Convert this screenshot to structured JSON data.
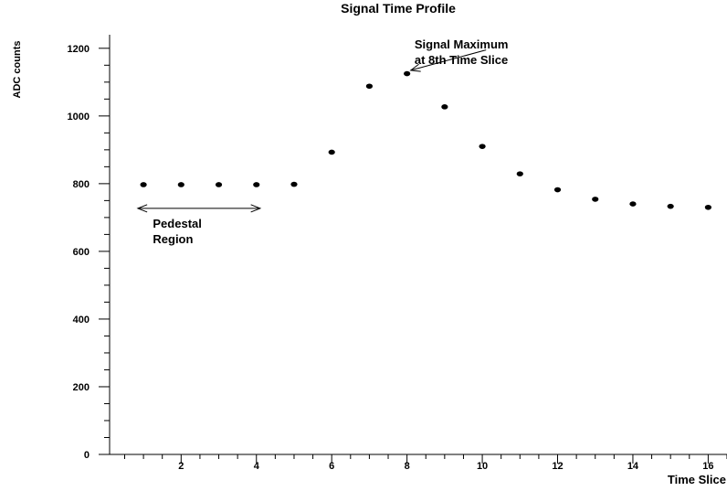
{
  "chart_data": {
    "type": "scatter",
    "title": "Signal Time Profile",
    "xlabel": "Time Slice",
    "ylabel": "ADC counts",
    "xlim": [
      0.1,
      16.5
    ],
    "ylim": [
      0,
      1240
    ],
    "x_ticks_major": [
      2,
      4,
      6,
      8,
      10,
      12,
      14,
      16
    ],
    "x_ticks_minor": [
      0.5,
      1,
      1.5,
      2.5,
      3,
      3.5,
      4.5,
      5,
      5.5,
      6.5,
      7,
      7.5,
      8.5,
      9,
      9.5,
      10.5,
      11,
      11.5,
      12.5,
      13,
      13.5,
      14.5,
      15,
      15.5,
      16.5
    ],
    "y_ticks_major": [
      0,
      200,
      400,
      600,
      800,
      1000,
      1200
    ],
    "y_ticks_minor": [
      50,
      100,
      150,
      250,
      300,
      350,
      450,
      500,
      550,
      650,
      700,
      750,
      850,
      900,
      950,
      1050,
      1100,
      1150
    ],
    "grid": false,
    "legend": "none",
    "points": [
      {
        "x": 1,
        "y": 797
      },
      {
        "x": 2,
        "y": 797
      },
      {
        "x": 3,
        "y": 797
      },
      {
        "x": 4,
        "y": 797
      },
      {
        "x": 5,
        "y": 798
      },
      {
        "x": 6,
        "y": 893
      },
      {
        "x": 7,
        "y": 1088
      },
      {
        "x": 8,
        "y": 1125
      },
      {
        "x": 9,
        "y": 1027
      },
      {
        "x": 10,
        "y": 910
      },
      {
        "x": 11,
        "y": 829
      },
      {
        "x": 12,
        "y": 782
      },
      {
        "x": 13,
        "y": 754
      },
      {
        "x": 14,
        "y": 740
      },
      {
        "x": 15,
        "y": 733
      },
      {
        "x": 16,
        "y": 730
      }
    ],
    "annotations": [
      {
        "id": "max",
        "lines": [
          "Signal Maximum",
          "at 8th Time Slice"
        ],
        "text_at": {
          "x": 8.2,
          "y": 1200
        },
        "arrow_from": {
          "x": 10.1,
          "y": 1195
        },
        "arrow_to": {
          "x": 8.1,
          "y": 1135
        }
      },
      {
        "id": "pedestal",
        "lines": [
          "Pedestal",
          "Region"
        ],
        "text_at": {
          "x": 1.25,
          "y": 670
        },
        "range_x": [
          0.85,
          4.1
        ],
        "range_y": 727
      }
    ]
  }
}
